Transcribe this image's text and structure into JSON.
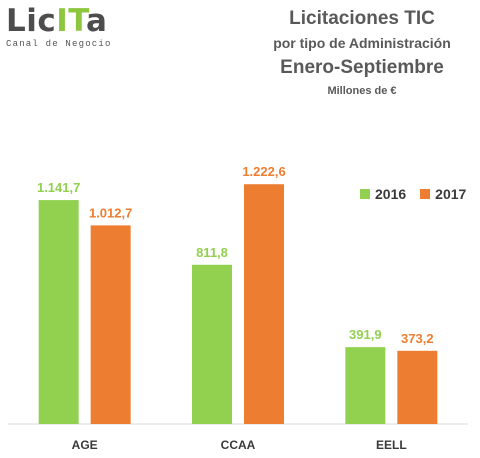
{
  "logo": {
    "word_start": "Lic",
    "word_accent": "IT",
    "word_end": "a",
    "tagline": "Canal de Negocio"
  },
  "header": {
    "title": "Licitaciones TIC",
    "subtitle": "por tipo de Administración",
    "period": "Enero-Septiembre",
    "units": "Millones de €"
  },
  "colors": {
    "series_2016": "#92d050",
    "series_2017": "#ed7d31",
    "axis": "#d9d9d9",
    "tick_text": "#3a3a3a"
  },
  "chart_data": {
    "type": "bar",
    "title": "Licitaciones TIC",
    "categories": [
      "AGE",
      "CCAA",
      "EELL"
    ],
    "series": [
      {
        "name": "2016",
        "values": [
          1141.7,
          811.8,
          391.9
        ],
        "labels": [
          "1.141,7",
          "811,8",
          "391,9"
        ]
      },
      {
        "name": "2017",
        "values": [
          1012.7,
          1222.6,
          373.2
        ],
        "labels": [
          "1.012,7",
          "1.222,6",
          "373,2"
        ]
      }
    ],
    "ylim": [
      0,
      1550
    ],
    "grid": false,
    "legend_position": "top-right"
  }
}
